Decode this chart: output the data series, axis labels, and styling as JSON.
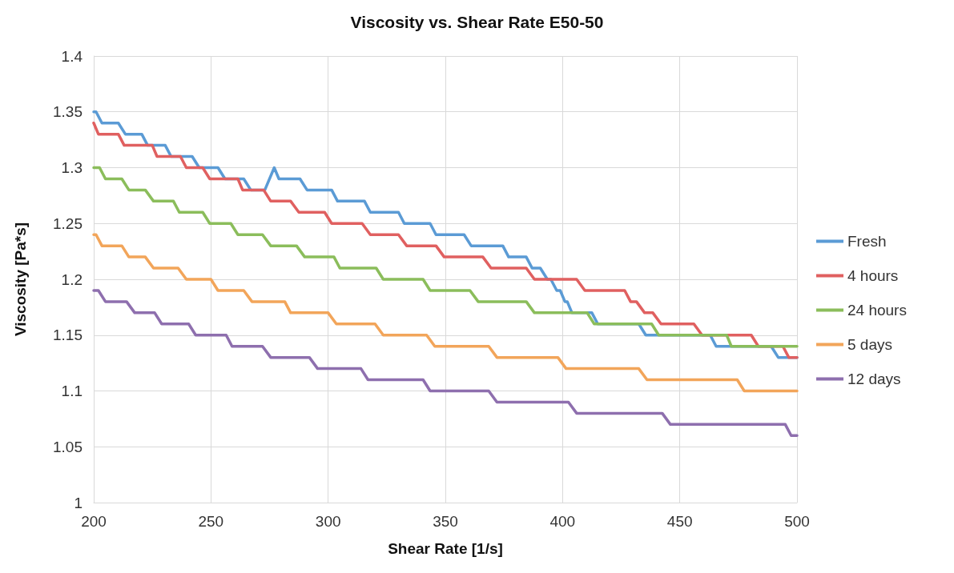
{
  "chart_data": {
    "type": "line",
    "title": "Viscosity vs. Shear Rate E50-50",
    "xlabel": "Shear Rate [1/s]",
    "ylabel": "Viscosity [Pa*s]",
    "xlim": [
      200,
      500
    ],
    "xticks": [
      200,
      250,
      300,
      350,
      400,
      450,
      500
    ],
    "ylim": [
      1,
      1.4
    ],
    "yticks": [
      1,
      1.05,
      1.1,
      1.15,
      1.2,
      1.25,
      1.3,
      1.35,
      1.4
    ],
    "grid": true,
    "legend": "right",
    "marker": "none",
    "line_style": "solid",
    "series": [
      {
        "name": "Fresh",
        "color": "#5b9bd5",
        "x": [
          200,
          201,
          203.5,
          210.5,
          213.5,
          220.5,
          223,
          230.5,
          233,
          242,
          245,
          253,
          256,
          264,
          267,
          273,
          277,
          279,
          288,
          291,
          301.5,
          304,
          315.5,
          318,
          330,
          332.5,
          343.5,
          346,
          358,
          361,
          374.5,
          377,
          384.5,
          387,
          390.5,
          393.5,
          395,
          397.5,
          399,
          401,
          402,
          404,
          412.5,
          415,
          432.5,
          435.5,
          463,
          465.5,
          489,
          492,
          500
        ],
        "values": [
          1.35,
          1.35,
          1.34,
          1.34,
          1.33,
          1.33,
          1.32,
          1.32,
          1.31,
          1.31,
          1.3,
          1.3,
          1.29,
          1.29,
          1.28,
          1.28,
          1.3,
          1.29,
          1.29,
          1.28,
          1.28,
          1.27,
          1.27,
          1.26,
          1.26,
          1.25,
          1.25,
          1.24,
          1.24,
          1.23,
          1.23,
          1.22,
          1.22,
          1.21,
          1.21,
          1.2,
          1.2,
          1.19,
          1.19,
          1.18,
          1.18,
          1.17,
          1.17,
          1.16,
          1.16,
          1.15,
          1.15,
          1.14,
          1.14,
          1.13,
          1.13
        ]
      },
      {
        "name": "4 hours",
        "color": "#e06060",
        "x": [
          200,
          202,
          210.5,
          213,
          225,
          227,
          237,
          239.5,
          246.5,
          249.5,
          261.5,
          263.5,
          272.5,
          275.5,
          284,
          287.5,
          298.5,
          301.5,
          314.5,
          318,
          330,
          333.5,
          346,
          349.5,
          366,
          369.5,
          384.5,
          388,
          406,
          409.5,
          426.5,
          429,
          431.5,
          435,
          438.5,
          442,
          456,
          459.5,
          480.5,
          483.5,
          494,
          496.5,
          500
        ],
        "values": [
          1.34,
          1.33,
          1.33,
          1.32,
          1.32,
          1.31,
          1.31,
          1.3,
          1.3,
          1.29,
          1.29,
          1.28,
          1.28,
          1.27,
          1.27,
          1.26,
          1.26,
          1.25,
          1.25,
          1.24,
          1.24,
          1.23,
          1.23,
          1.22,
          1.22,
          1.21,
          1.21,
          1.2,
          1.2,
          1.19,
          1.19,
          1.18,
          1.18,
          1.17,
          1.17,
          1.16,
          1.16,
          1.15,
          1.15,
          1.14,
          1.14,
          1.13,
          1.13
        ]
      },
      {
        "name": "24 hours",
        "color": "#8bbd5b",
        "x": [
          200,
          202.5,
          205,
          212,
          215,
          222,
          225.5,
          234,
          236.5,
          246.5,
          249.5,
          258.5,
          261.5,
          272,
          275.5,
          286.5,
          290,
          302.5,
          305,
          320.5,
          323.5,
          340.5,
          343.5,
          360.5,
          364,
          384.5,
          388,
          410.5,
          413.5,
          438,
          441,
          470,
          472,
          500
        ],
        "values": [
          1.3,
          1.3,
          1.29,
          1.29,
          1.28,
          1.28,
          1.27,
          1.27,
          1.26,
          1.26,
          1.25,
          1.25,
          1.24,
          1.24,
          1.23,
          1.23,
          1.22,
          1.22,
          1.21,
          1.21,
          1.2,
          1.2,
          1.19,
          1.19,
          1.18,
          1.18,
          1.17,
          1.17,
          1.16,
          1.16,
          1.15,
          1.15,
          1.14,
          1.14
        ]
      },
      {
        "name": "5 days",
        "color": "#f2a55a",
        "x": [
          200,
          201,
          203.5,
          212,
          215,
          222,
          225.5,
          236,
          239.5,
          250,
          253,
          264,
          267.5,
          281.5,
          284,
          300,
          303.5,
          320,
          323.5,
          342,
          345.5,
          368.5,
          372,
          398,
          401.5,
          432.5,
          436,
          474.5,
          477.5,
          500
        ],
        "values": [
          1.24,
          1.24,
          1.23,
          1.23,
          1.22,
          1.22,
          1.21,
          1.21,
          1.2,
          1.2,
          1.19,
          1.19,
          1.18,
          1.18,
          1.17,
          1.17,
          1.16,
          1.16,
          1.15,
          1.15,
          1.14,
          1.14,
          1.13,
          1.13,
          1.12,
          1.12,
          1.11,
          1.11,
          1.1,
          1.1
        ]
      },
      {
        "name": "12 days",
        "color": "#8e6fae",
        "x": [
          200,
          202,
          205,
          214,
          217.5,
          226,
          229,
          240.5,
          243.5,
          256.5,
          259,
          272,
          275.5,
          292,
          295.5,
          314,
          317,
          340.5,
          343.5,
          368.5,
          372,
          402.5,
          406,
          442.5,
          446,
          495,
          497.5,
          500
        ],
        "values": [
          1.19,
          1.19,
          1.18,
          1.18,
          1.17,
          1.17,
          1.16,
          1.16,
          1.15,
          1.15,
          1.14,
          1.14,
          1.13,
          1.13,
          1.12,
          1.12,
          1.11,
          1.11,
          1.1,
          1.1,
          1.09,
          1.09,
          1.08,
          1.08,
          1.07,
          1.07,
          1.06,
          1.06
        ]
      }
    ]
  }
}
